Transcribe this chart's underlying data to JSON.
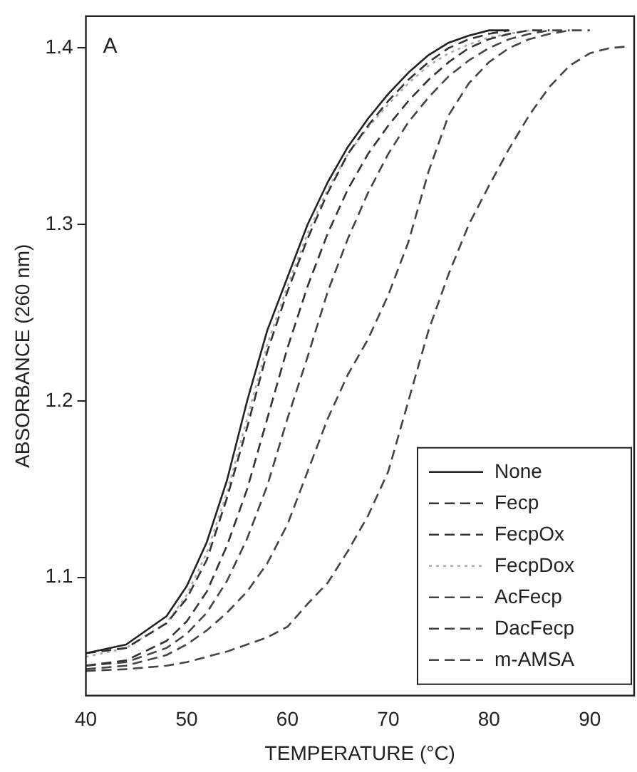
{
  "chart_data": {
    "type": "line",
    "xlabel": "TEMPERATURE (°C)",
    "ylabel": "ABSORBANCE (260 nm)",
    "annotations": [
      "A"
    ],
    "x": [
      40,
      44,
      48,
      50,
      52,
      54,
      56,
      58,
      60,
      62,
      64,
      66,
      68,
      70,
      72,
      74,
      76,
      78,
      80,
      82,
      84,
      86,
      88,
      90,
      92,
      94
    ],
    "series": [
      {
        "name": "None",
        "color": "#222222",
        "line_style": "solid",
        "values": [
          1.057,
          1.062,
          1.078,
          1.095,
          1.12,
          1.155,
          1.2,
          1.24,
          1.27,
          1.3,
          1.324,
          1.344,
          1.36,
          1.374,
          1.386,
          1.396,
          1.403,
          1.407,
          1.41,
          1.41,
          null,
          null,
          null,
          null,
          null,
          null
        ]
      },
      {
        "name": "Fecp",
        "color": "#333333",
        "line_style": "dashed",
        "values": [
          1.057,
          1.06,
          1.074,
          1.088,
          1.11,
          1.145,
          1.185,
          1.228,
          1.262,
          1.292,
          1.318,
          1.34,
          1.356,
          1.37,
          1.382,
          1.392,
          1.4,
          1.405,
          1.408,
          1.41,
          null,
          null,
          null,
          null,
          null,
          null
        ]
      },
      {
        "name": "FecpOx",
        "color": "#333333",
        "line_style": "dashed",
        "values": [
          1.05,
          1.053,
          1.064,
          1.075,
          1.092,
          1.118,
          1.15,
          1.19,
          1.23,
          1.265,
          1.295,
          1.32,
          1.34,
          1.356,
          1.37,
          1.382,
          1.392,
          1.4,
          1.405,
          1.408,
          1.41,
          1.41,
          null,
          null,
          null,
          null
        ]
      },
      {
        "name": "FecpDox",
        "color": "#aaaaaa",
        "line_style": "dotted",
        "values": [
          1.055,
          1.06,
          1.074,
          1.09,
          1.114,
          1.148,
          1.19,
          1.232,
          1.265,
          1.295,
          1.32,
          1.34,
          1.355,
          1.368,
          1.38,
          1.39,
          1.397,
          1.402,
          1.406,
          1.408,
          1.41,
          null,
          null,
          null,
          null,
          null
        ]
      },
      {
        "name": "AcFecp",
        "color": "#444444",
        "line_style": "dashed",
        "values": [
          1.05,
          1.052,
          1.06,
          1.068,
          1.08,
          1.098,
          1.122,
          1.152,
          1.19,
          1.225,
          1.262,
          1.292,
          1.318,
          1.34,
          1.358,
          1.372,
          1.384,
          1.393,
          1.4,
          1.405,
          1.408,
          1.41,
          1.41,
          null,
          null,
          null
        ]
      },
      {
        "name": "DacFecp",
        "color": "#444444",
        "line_style": "dashed",
        "values": [
          1.048,
          1.05,
          1.056,
          1.062,
          1.07,
          1.08,
          1.092,
          1.108,
          1.13,
          1.16,
          1.19,
          1.215,
          1.235,
          1.26,
          1.29,
          1.33,
          1.362,
          1.38,
          1.392,
          1.4,
          1.405,
          1.408,
          1.41,
          1.41,
          null,
          null
        ]
      },
      {
        "name": "m-AMSA",
        "color": "#444444",
        "line_style": "dashed",
        "values": [
          1.047,
          1.048,
          1.05,
          1.052,
          1.055,
          1.058,
          1.062,
          1.066,
          1.072,
          1.085,
          1.097,
          1.115,
          1.135,
          1.16,
          1.2,
          1.24,
          1.272,
          1.3,
          1.322,
          1.343,
          1.362,
          1.378,
          1.39,
          1.397,
          1.4,
          1.401
        ]
      }
    ],
    "xlim": [
      40,
      94.4
    ],
    "ylim": [
      1.033,
      1.418
    ],
    "xticks": [
      40,
      50,
      60,
      70,
      80,
      90
    ],
    "yticks": [
      1.1,
      1.2,
      1.3,
      1.4
    ],
    "grid": false,
    "legend": "bottom right",
    "marker": "none"
  }
}
